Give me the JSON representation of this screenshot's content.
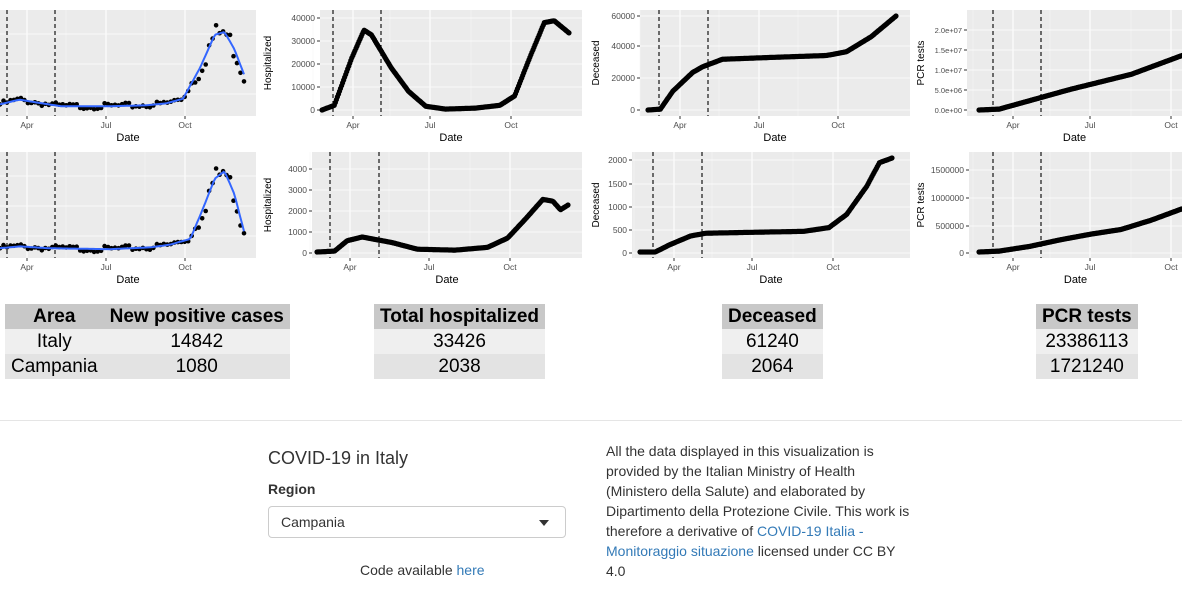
{
  "chart_data": [
    {
      "type": "scatter",
      "row": "Italy",
      "x_ticks": [
        "Apr",
        "Jul",
        "Oct"
      ],
      "xlabel": "Date",
      "ylabel": "",
      "y_ticks": [],
      "series": [
        {
          "name": "",
          "values": [
            [
              0.0,
              1800
            ],
            [
              0.05,
              3300
            ],
            [
              0.1,
              5400
            ],
            [
              0.15,
              5000
            ],
            [
              0.2,
              3500
            ],
            [
              0.25,
              2000
            ],
            [
              0.3,
              1200
            ],
            [
              0.35,
              700
            ],
            [
              0.4,
              400
            ],
            [
              0.45,
              300
            ],
            [
              0.5,
              250
            ],
            [
              0.55,
              400
            ],
            [
              0.6,
              1500
            ],
            [
              0.65,
              900
            ],
            [
              0.7,
              2000
            ],
            [
              0.75,
              3500
            ],
            [
              0.8,
              12000
            ],
            [
              0.85,
              22000
            ],
            [
              0.9,
              31000
            ],
            [
              0.95,
              29000
            ],
            [
              1.0,
              19000
            ]
          ]
        }
      ],
      "notes": "New positive cases with smoothed trend line"
    },
    {
      "type": "line",
      "row": "Italy",
      "x_ticks": [
        "Apr",
        "Jul",
        "Oct"
      ],
      "xlabel": "Date",
      "ylabel": "Hospitalized",
      "y_ticks": [
        "0",
        "10000",
        "20000",
        "30000",
        "40000"
      ]
    },
    {
      "type": "line",
      "row": "Italy",
      "x_ticks": [
        "Apr",
        "Jul",
        "Oct"
      ],
      "xlabel": "Date",
      "ylabel": "Deceased",
      "y_ticks": [
        "0",
        "20000",
        "40000",
        "60000"
      ]
    },
    {
      "type": "line",
      "row": "Italy",
      "x_ticks": [
        "Apr",
        "Jul",
        "Oct"
      ],
      "xlabel": "Date",
      "ylabel": "PCR tests",
      "y_ticks": [
        "0.0e+00",
        "5.0e+06",
        "1.0e+07",
        "1.5e+07",
        "2.0e+07"
      ]
    },
    {
      "type": "scatter",
      "row": "Campania",
      "x_ticks": [
        "Apr",
        "Jul",
        "Oct"
      ],
      "xlabel": "Date",
      "ylabel": "",
      "y_ticks": []
    },
    {
      "type": "line",
      "row": "Campania",
      "x_ticks": [
        "Apr",
        "Jul",
        "Oct"
      ],
      "xlabel": "Date",
      "ylabel": "Hospitalized",
      "y_ticks": [
        "0",
        "1000",
        "2000",
        "3000",
        "4000"
      ]
    },
    {
      "type": "line",
      "row": "Campania",
      "x_ticks": [
        "Apr",
        "Jul",
        "Oct"
      ],
      "xlabel": "Date",
      "ylabel": "Deceased",
      "y_ticks": [
        "0",
        "500",
        "1000",
        "1500",
        "2000"
      ]
    },
    {
      "type": "line",
      "row": "Campania",
      "x_ticks": [
        "Apr",
        "Jul",
        "Oct"
      ],
      "xlabel": "Date",
      "ylabel": "PCR tests",
      "y_ticks": [
        "0",
        "500000",
        "1000000",
        "1500000"
      ]
    }
  ],
  "tables": {
    "cases": {
      "headers": [
        "Area",
        "New positive cases"
      ],
      "rows": [
        [
          "Italy",
          "14842"
        ],
        [
          "Campania",
          "1080"
        ]
      ]
    },
    "hosp": {
      "headers": [
        "Total hospitalized"
      ],
      "rows": [
        [
          "33426"
        ],
        [
          "2038"
        ]
      ]
    },
    "deceased": {
      "headers": [
        "Deceased"
      ],
      "rows": [
        [
          "61240"
        ],
        [
          "2064"
        ]
      ]
    },
    "pcr": {
      "headers": [
        "PCR tests"
      ],
      "rows": [
        [
          "23386113"
        ],
        [
          "1721240"
        ]
      ]
    }
  },
  "sidebar": {
    "title": "COVID-19 in Italy",
    "region_label": "Region",
    "region_value": "Campania",
    "code_prefix": "Code available ",
    "code_link": "here"
  },
  "credits": {
    "text1": "All the data displayed in this visualization is provided by the Italian Ministry of Health (Ministero della Salute) and elaborated by Dipartimento della Protezione Civile. This work is therefore a derivative of ",
    "link": "COVID-19 Italia - Monitoraggio situazione",
    "text2": " licensed under CC BY 4.0"
  },
  "colors": {
    "panel": "#ebebeb",
    "grid": "#ffffff",
    "trend": "#3366ff",
    "points": "#000000"
  }
}
